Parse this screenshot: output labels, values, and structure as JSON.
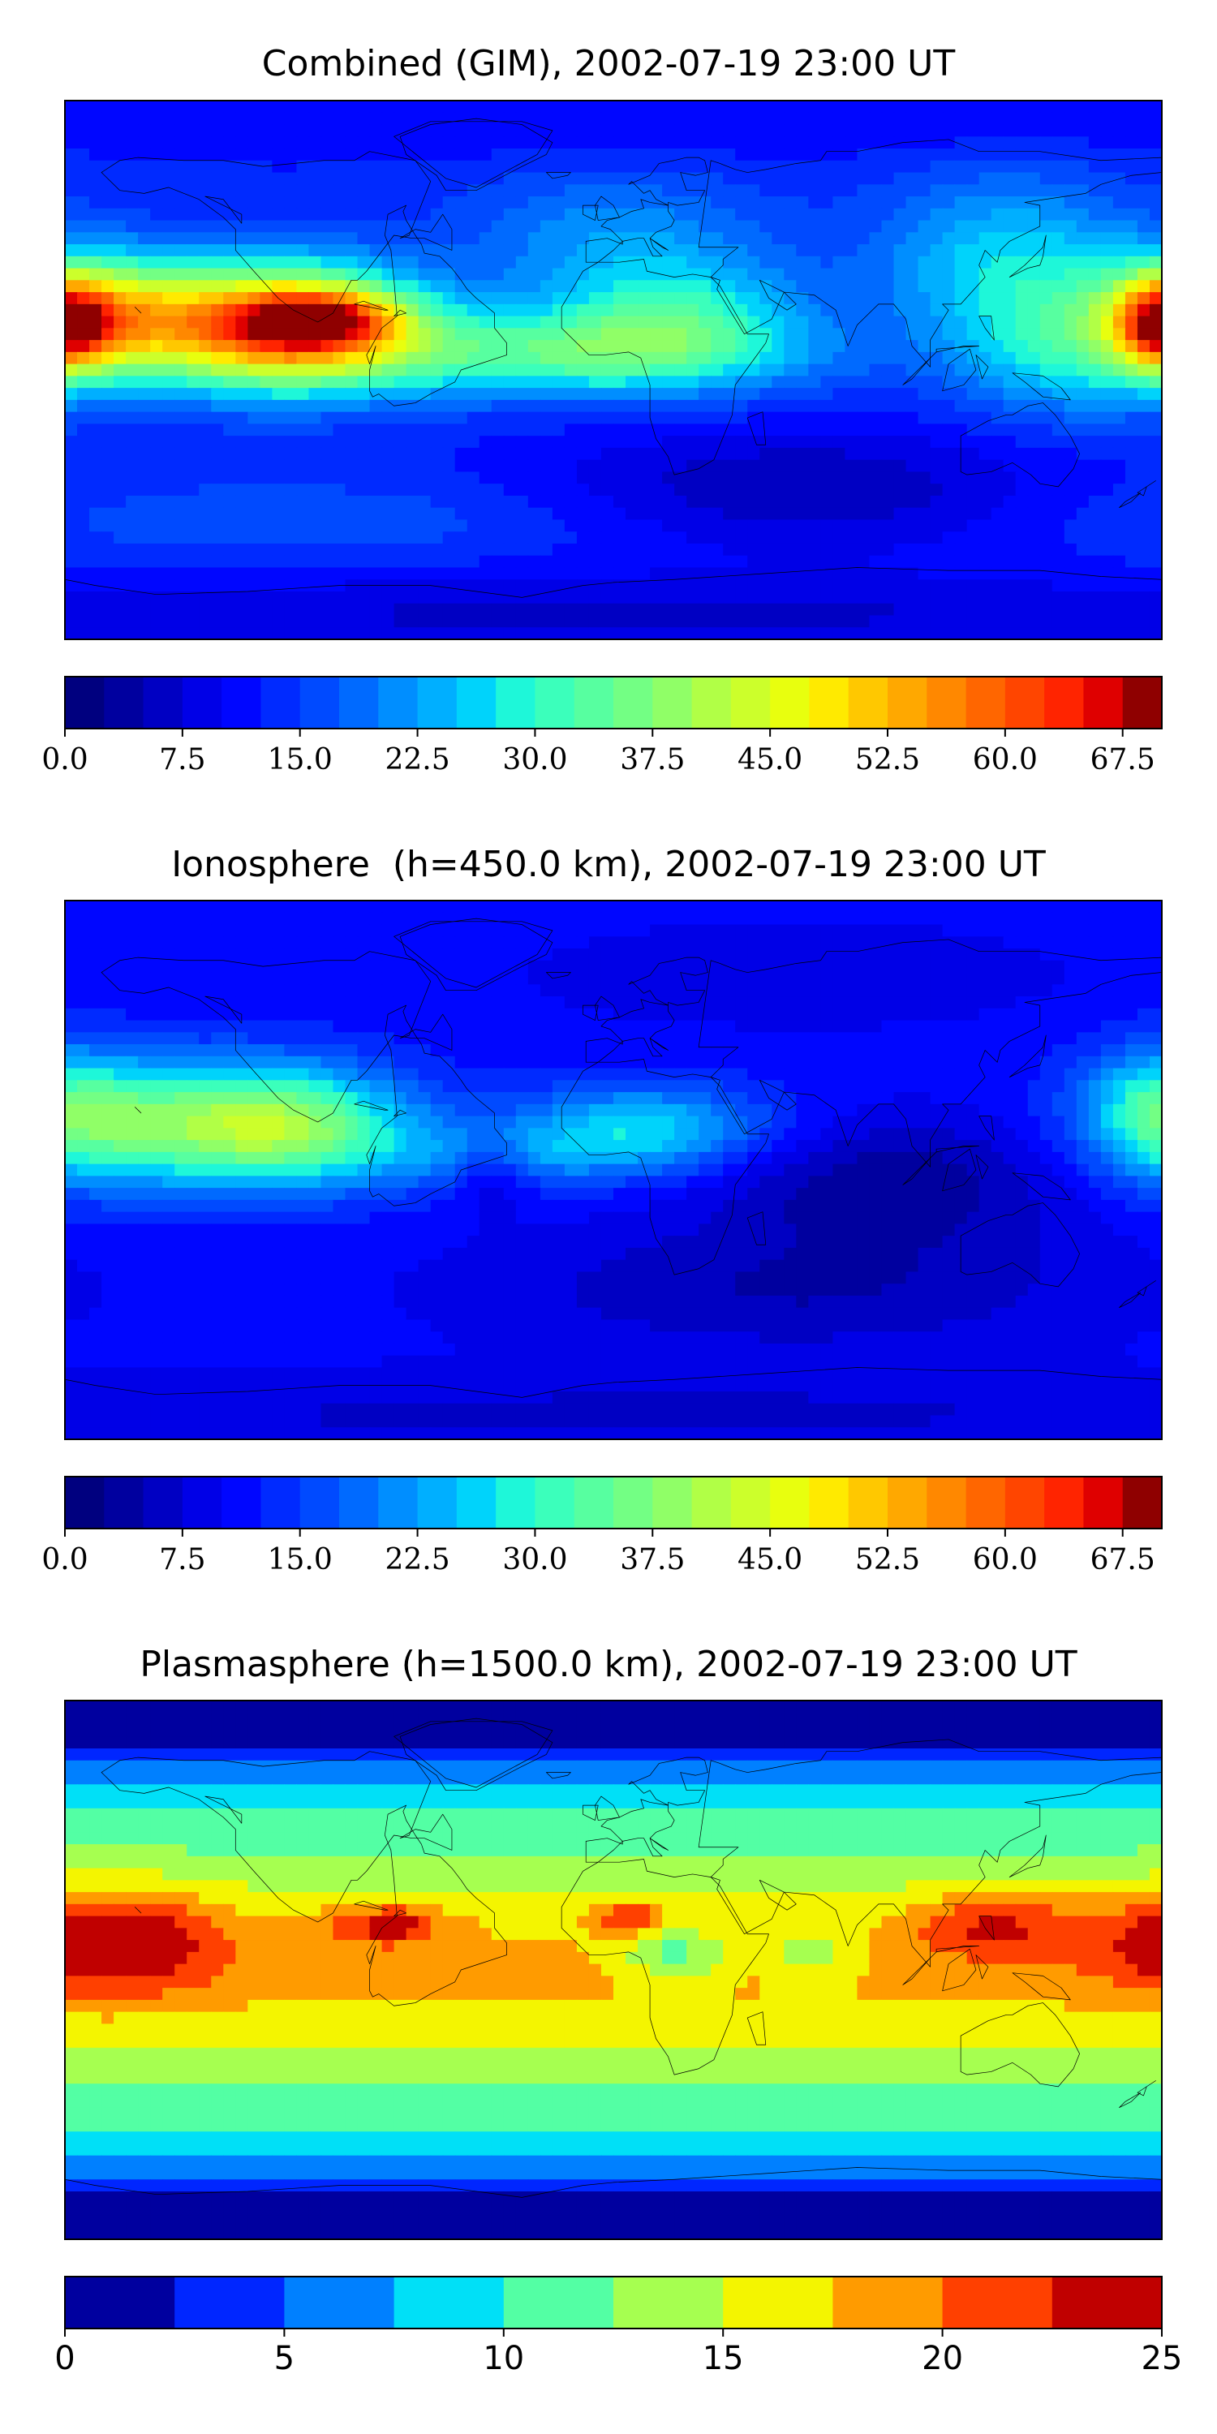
{
  "colormaps": {
    "jet28": [
      "#00007f",
      "#00009f",
      "#0000c3",
      "#0000e7",
      "#0006ff",
      "#002aff",
      "#004aff",
      "#006aff",
      "#008eff",
      "#00afff",
      "#00d3fb",
      "#1ef7d9",
      "#3bffbb",
      "#57ffa0",
      "#73ff84",
      "#90ff67",
      "#b1ff46",
      "#ccff2b",
      "#e8ff0e",
      "#ffea00",
      "#ffc800",
      "#ffa800",
      "#ff8800",
      "#ff6600",
      "#ff4500",
      "#ff2400",
      "#df0000",
      "#8f0000"
    ],
    "jet10": [
      "#00009f",
      "#0026ff",
      "#0080ff",
      "#00e0f7",
      "#53ffa4",
      "#a6ff50",
      "#f4f500",
      "#ff9b00",
      "#ff4000",
      "#c00000"
    ]
  },
  "chart_data": [
    {
      "type": "heatmap",
      "title": "Combined (GIM), 2002-07-19 23:00 UT",
      "colorbar": {
        "min": 0.0,
        "max": 70.0,
        "levels": 28,
        "step": 2.5,
        "tick_values": [
          0.0,
          7.5,
          15.0,
          22.5,
          30.0,
          37.5,
          45.0,
          52.5,
          60.0,
          67.5
        ],
        "tick_labels": [
          "0.0",
          "7.5",
          "15.0",
          "22.5",
          "30.0",
          "37.5",
          "45.0",
          "52.5",
          "60.0",
          "67.5"
        ]
      },
      "field": {
        "background": 13,
        "blobs": [
          {
            "lon": -110,
            "lat": 15,
            "sx": 32,
            "sy": 14,
            "v": 48
          },
          {
            "lon": -95,
            "lat": 17,
            "sx": 16,
            "sy": 6,
            "v": 20
          },
          {
            "lon": -170,
            "lat": 18,
            "sx": 22,
            "sy": 14,
            "v": 30
          },
          {
            "lon": 180,
            "lat": 15,
            "sx": 10,
            "sy": 10,
            "v": 28
          },
          {
            "lon": -20,
            "lat": 5,
            "sx": 55,
            "sy": 10,
            "v": 18
          },
          {
            "lon": 20,
            "lat": 18,
            "sx": 30,
            "sy": 14,
            "v": 15
          },
          {
            "lon": 0,
            "lat": 45,
            "sx": 35,
            "sy": 15,
            "v": 8
          },
          {
            "lon": 130,
            "lat": 35,
            "sx": 30,
            "sy": 20,
            "v": 14
          },
          {
            "lon": 150,
            "lat": 5,
            "sx": 25,
            "sy": 15,
            "v": 12
          },
          {
            "lon": 60,
            "lat": -40,
            "sx": 60,
            "sy": 15,
            "v": -8
          },
          {
            "lon": -100,
            "lat": -50,
            "sx": 80,
            "sy": 10,
            "v": 4
          },
          {
            "lon": 0,
            "lat": -82,
            "sx": 200,
            "sy": 10,
            "v": -6
          },
          {
            "lon": 0,
            "lat": 82,
            "sx": 200,
            "sy": 8,
            "v": -3
          }
        ]
      }
    },
    {
      "type": "heatmap",
      "title": "Ionosphere  (h=450.0 km), 2002-07-19 23:00 UT",
      "colorbar": {
        "min": 0.0,
        "max": 70.0,
        "levels": 28,
        "step": 2.5,
        "tick_values": [
          0.0,
          7.5,
          15.0,
          22.5,
          30.0,
          37.5,
          45.0,
          52.5,
          60.0,
          67.5
        ],
        "tick_labels": [
          "0.0",
          "7.5",
          "15.0",
          "22.5",
          "30.0",
          "37.5",
          "45.0",
          "52.5",
          "60.0",
          "67.5"
        ]
      },
      "field": {
        "background": 11,
        "blobs": [
          {
            "lon": -110,
            "lat": 15,
            "sx": 30,
            "sy": 14,
            "v": 28
          },
          {
            "lon": -160,
            "lat": 15,
            "sx": 30,
            "sy": 15,
            "v": 14
          },
          {
            "lon": 180,
            "lat": 20,
            "sx": 18,
            "sy": 15,
            "v": 14
          },
          {
            "lon": 10,
            "lat": 15,
            "sx": 30,
            "sy": 10,
            "v": 14
          },
          {
            "lon": -30,
            "lat": 5,
            "sx": 40,
            "sy": 8,
            "v": 8
          },
          {
            "lon": -40,
            "lat": 0,
            "sx": 8,
            "sy": 8,
            "v": -7
          },
          {
            "lon": 90,
            "lat": -5,
            "sx": 40,
            "sy": 15,
            "v": -8
          },
          {
            "lon": 60,
            "lat": -40,
            "sx": 70,
            "sy": 15,
            "v": -6
          },
          {
            "lon": 0,
            "lat": -82,
            "sx": 200,
            "sy": 10,
            "v": -4
          },
          {
            "lon": 60,
            "lat": 65,
            "sx": 60,
            "sy": 12,
            "v": -3
          }
        ]
      }
    },
    {
      "type": "heatmap",
      "title": "Plasmasphere (h=1500.0 km), 2002-07-19 23:00 UT",
      "colorbar": {
        "min": 0,
        "max": 25,
        "levels": 10,
        "step": 2.5,
        "tick_values": [
          0,
          5,
          10,
          15,
          20,
          25
        ],
        "tick_labels": [
          "0",
          "5",
          "10",
          "15",
          "20",
          "25"
        ]
      },
      "field": {
        "background": 9,
        "lat_band": {
          "amp": 9,
          "width": 28,
          "polar_amp": 8,
          "polar_lat": 55
        },
        "blobs": [
          {
            "lon": -165,
            "lat": 10,
            "sx": 25,
            "sy": 12,
            "v": 9
          },
          {
            "lon": -170,
            "lat": 12,
            "sx": 6,
            "sy": 3,
            "v": 6
          },
          {
            "lon": -75,
            "lat": 15,
            "sx": 15,
            "sy": 5,
            "v": 6
          },
          {
            "lon": -72,
            "lat": 15,
            "sx": 5,
            "sy": 3,
            "v": 3
          },
          {
            "lon": 5,
            "lat": 18,
            "sx": 8,
            "sy": 4,
            "v": 6
          },
          {
            "lon": 20,
            "lat": 5,
            "sx": 12,
            "sy": 6,
            "v": -6
          },
          {
            "lon": 65,
            "lat": 5,
            "sx": 10,
            "sy": 6,
            "v": -4
          },
          {
            "lon": 125,
            "lat": 15,
            "sx": 20,
            "sy": 8,
            "v": 6
          }
        ]
      }
    }
  ]
}
